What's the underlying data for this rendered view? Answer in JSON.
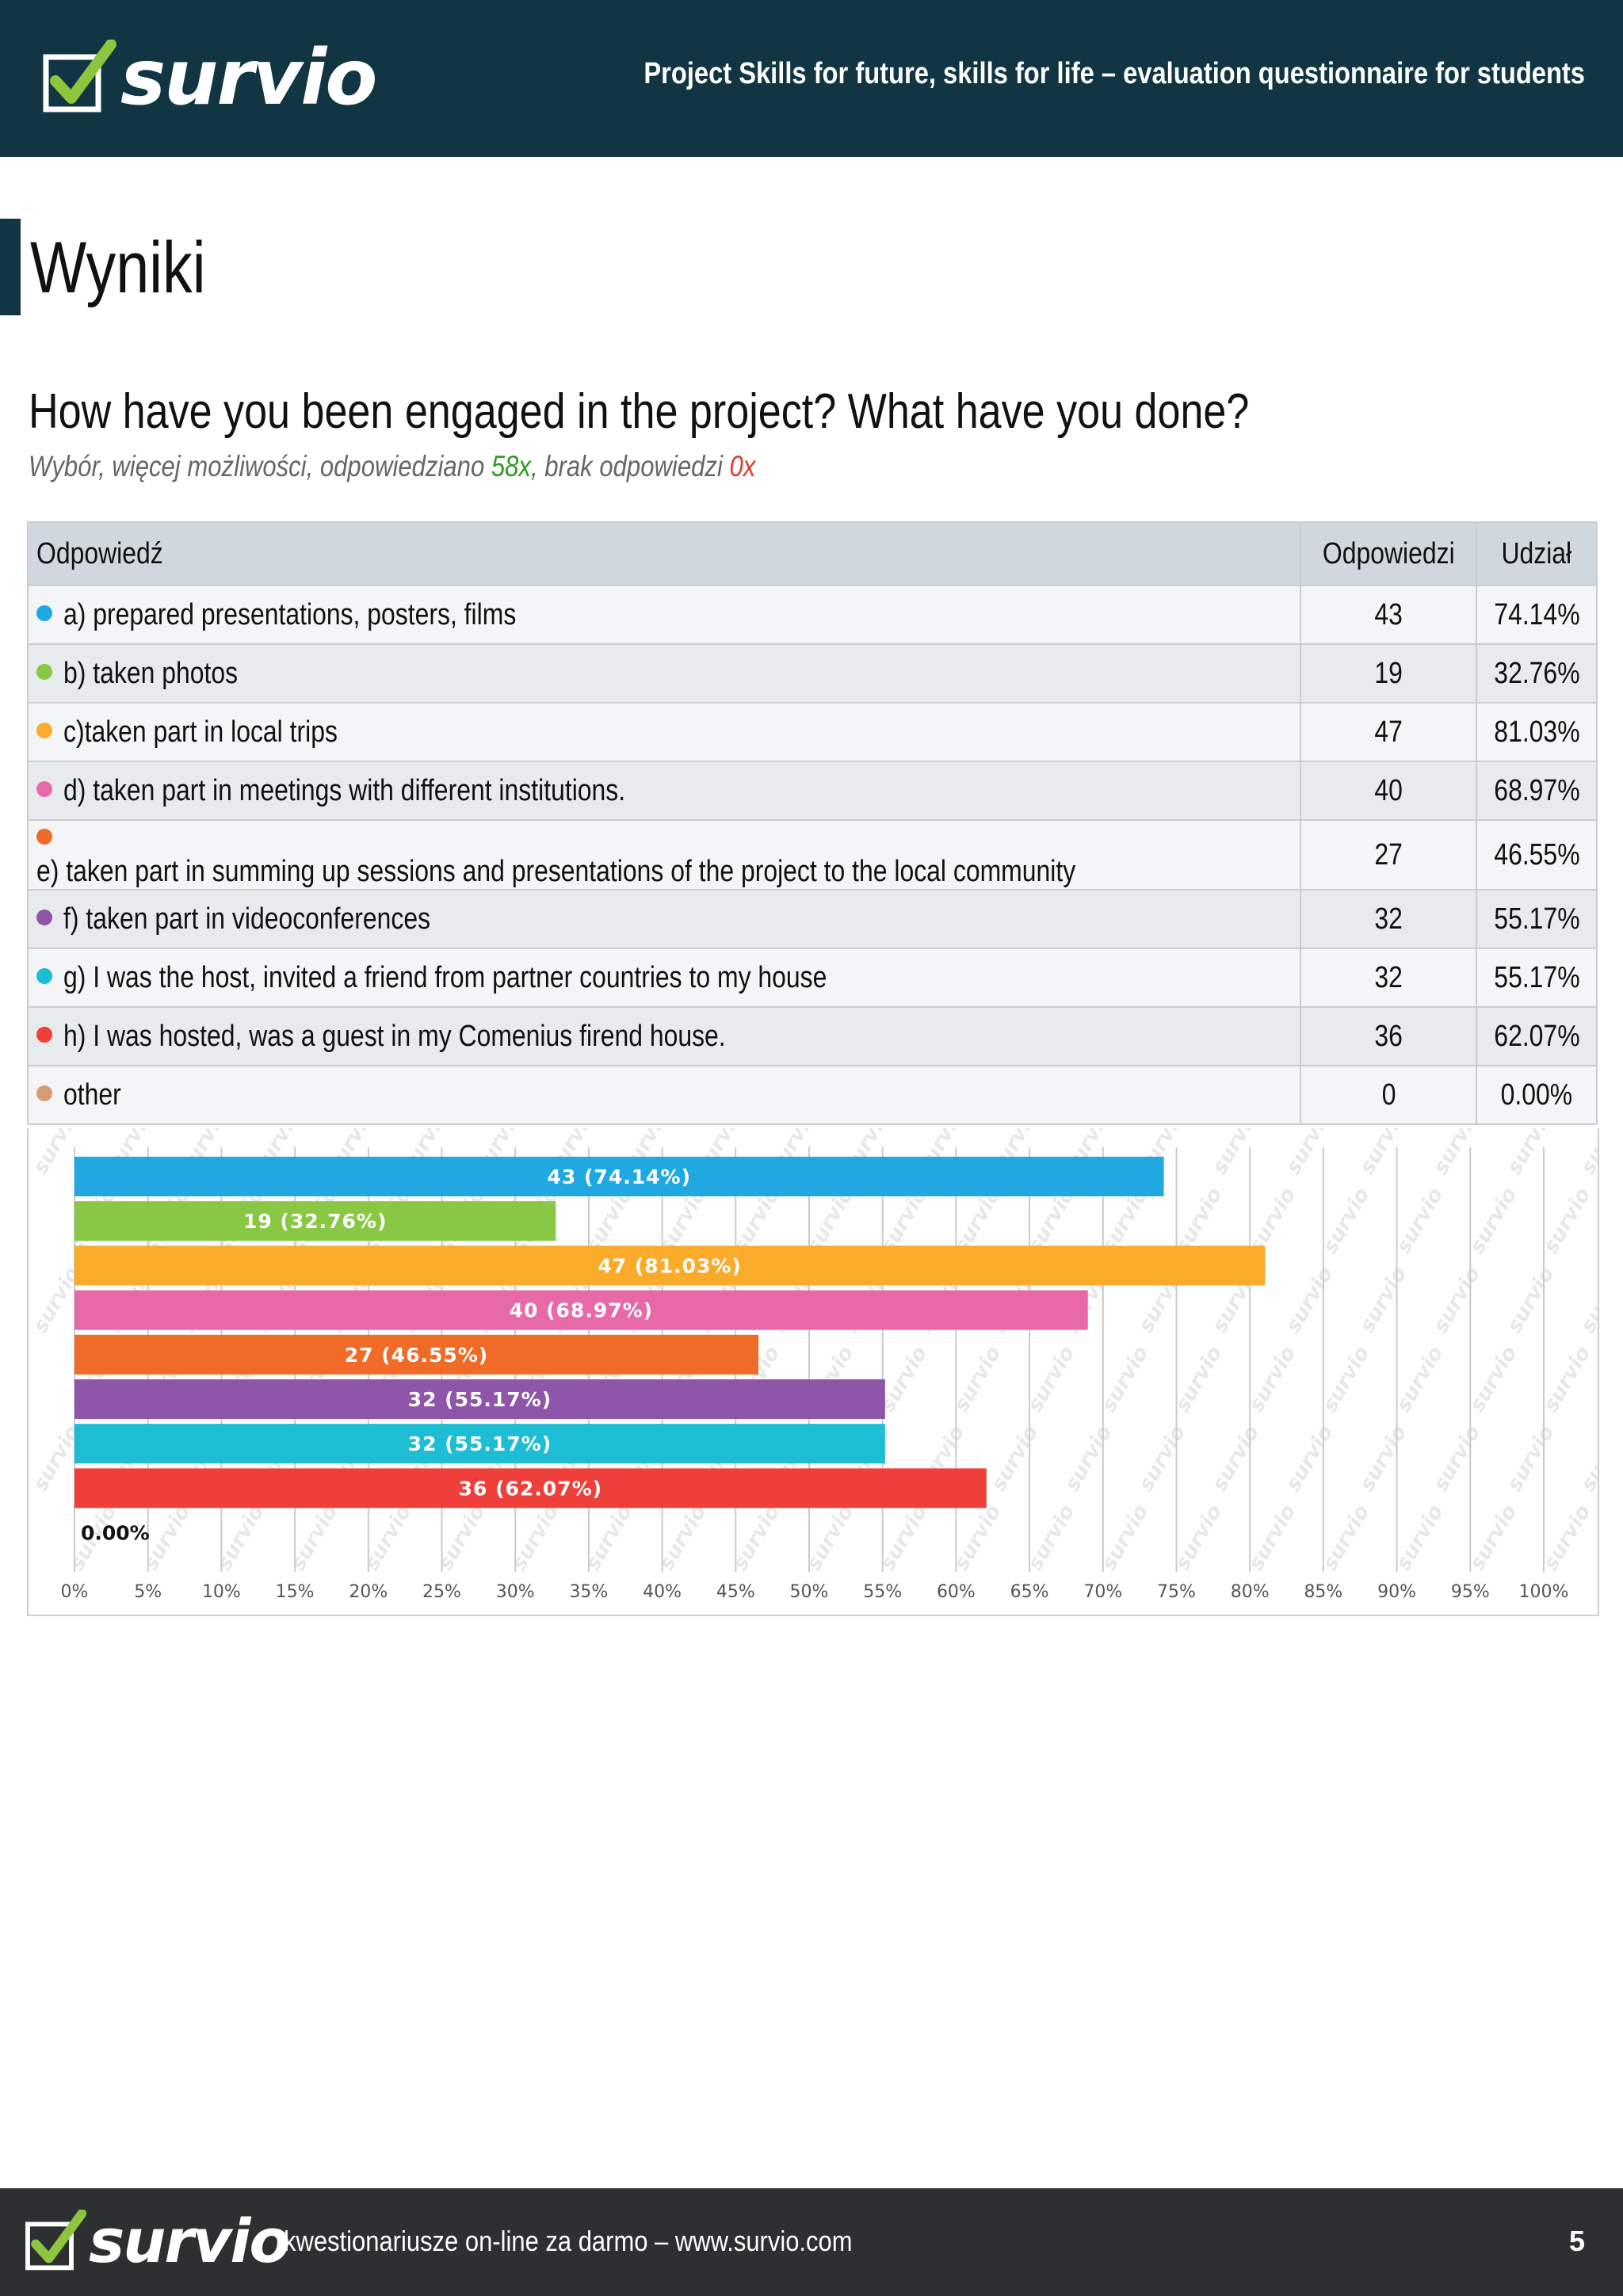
{
  "header": {
    "logo_text": "survio",
    "title": "Project Skills for future, skills for life – evaluation questionnaire for students"
  },
  "section_title": "Wyniki",
  "question": {
    "title": "How have you been engaged in the project? What have you done?",
    "subtitle_prefix": "Wybór, więcej możliwości, odpowiedziano ",
    "answered": "58x",
    "subtitle_middle": ", brak odpowiedzi ",
    "unanswered": "0x"
  },
  "table": {
    "headers": {
      "answer": "Odpowiedź",
      "count": "Odpowiedzi",
      "share": "Udział"
    },
    "rows": [
      {
        "label": "a) prepared presentations, posters, films",
        "count": "43",
        "share": "74.14%",
        "color": "#1fa9e0"
      },
      {
        "label": "b) taken photos",
        "count": "19",
        "share": "32.76%",
        "color": "#88c845"
      },
      {
        "label": "c)taken part in local trips",
        "count": "47",
        "share": "81.03%",
        "color": "#fbab2a"
      },
      {
        "label": "d) taken part in meetings with different institutions.",
        "count": "40",
        "share": "68.97%",
        "color": "#e769a8"
      },
      {
        "label": "e) taken part in summing up sessions and presentations of the project to the local community",
        "count": "27",
        "share": "46.55%",
        "color": "#f06a28"
      },
      {
        "label": "f) taken part in videoconferences",
        "count": "32",
        "share": "55.17%",
        "color": "#8f55a8"
      },
      {
        "label": "g) I was the host, invited a friend from partner countries to my house",
        "count": "32",
        "share": "55.17%",
        "color": "#1dbdd3"
      },
      {
        "label": "h) I was hosted, was a guest in my Comenius firend house.",
        "count": "36",
        "share": "62.07%",
        "color": "#ef3f3a"
      },
      {
        "label": "other",
        "count": "0",
        "share": "0.00%",
        "color": "#d59c78"
      }
    ]
  },
  "chart_data": {
    "type": "bar",
    "orientation": "horizontal",
    "categories": [
      "a",
      "b",
      "c",
      "d",
      "e",
      "f",
      "g",
      "h",
      "other"
    ],
    "values": [
      74.14,
      32.76,
      81.03,
      68.97,
      46.55,
      55.17,
      55.17,
      62.07,
      0.0
    ],
    "data_labels": [
      "43 (74.14%)",
      "19 (32.76%)",
      "47 (81.03%)",
      "40 (68.97%)",
      "27 (46.55%)",
      "32 (55.17%)",
      "32 (55.17%)",
      "36 (62.07%)",
      "0.00%"
    ],
    "colors": [
      "#1fa9e0",
      "#88c845",
      "#fbab2a",
      "#e769a8",
      "#f06a28",
      "#8f55a8",
      "#1dbdd3",
      "#ef3f3a",
      "#d59c78"
    ],
    "xlim": [
      0,
      100
    ],
    "ticks": [
      "0%",
      "5%",
      "10%",
      "15%",
      "20%",
      "25%",
      "30%",
      "35%",
      "40%",
      "45%",
      "50%",
      "55%",
      "60%",
      "65%",
      "70%",
      "75%",
      "80%",
      "85%",
      "90%",
      "95%",
      "100%"
    ],
    "grid": true,
    "watermark_text": "survio"
  },
  "footer": {
    "logo_text": "survio",
    "text": "kwestionariusze on-line za darmo – www.survio.com",
    "page": "5"
  }
}
